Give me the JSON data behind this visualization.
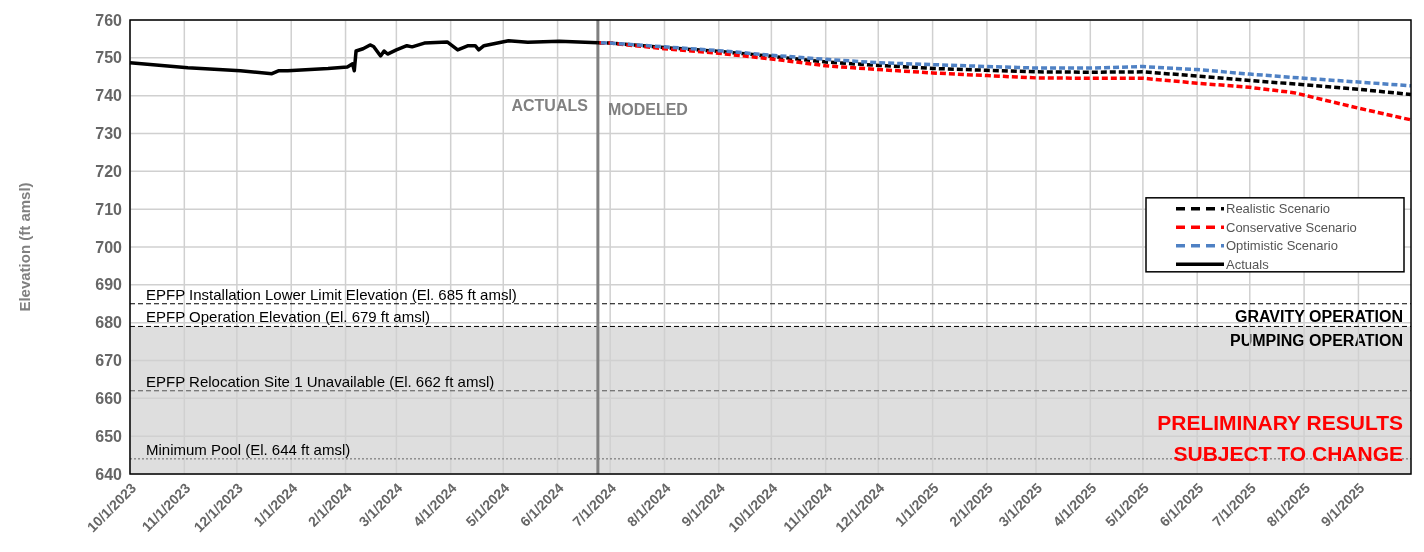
{
  "chart_data": {
    "type": "line",
    "ylabel": "Elevation (ft amsl)",
    "xlim": [
      "2023-10-01",
      "2025-10-01"
    ],
    "xticks": [
      {
        "value": "2023-10-01",
        "label": "10/1/2023"
      },
      {
        "value": "2023-11-01",
        "label": "11/1/2023"
      },
      {
        "value": "2023-12-01",
        "label": "12/1/2023"
      },
      {
        "value": "2024-01-01",
        "label": "1/1/2024"
      },
      {
        "value": "2024-02-01",
        "label": "2/1/2024"
      },
      {
        "value": "2024-03-01",
        "label": "3/1/2024"
      },
      {
        "value": "2024-04-01",
        "label": "4/1/2024"
      },
      {
        "value": "2024-05-01",
        "label": "5/1/2024"
      },
      {
        "value": "2024-06-01",
        "label": "6/1/2024"
      },
      {
        "value": "2024-07-01",
        "label": "7/1/2024"
      },
      {
        "value": "2024-08-01",
        "label": "8/1/2024"
      },
      {
        "value": "2024-09-01",
        "label": "9/1/2024"
      },
      {
        "value": "2024-10-01",
        "label": "10/1/2024"
      },
      {
        "value": "2024-11-01",
        "label": "11/1/2024"
      },
      {
        "value": "2024-12-01",
        "label": "12/1/2024"
      },
      {
        "value": "2025-01-01",
        "label": "1/1/2025"
      },
      {
        "value": "2025-02-01",
        "label": "2/1/2025"
      },
      {
        "value": "2025-03-01",
        "label": "3/1/2025"
      },
      {
        "value": "2025-04-01",
        "label": "4/1/2025"
      },
      {
        "value": "2025-05-01",
        "label": "5/1/2025"
      },
      {
        "value": "2025-06-01",
        "label": "6/1/2025"
      },
      {
        "value": "2025-07-01",
        "label": "7/1/2025"
      },
      {
        "value": "2025-08-01",
        "label": "8/1/2025"
      },
      {
        "value": "2025-09-01",
        "label": "9/1/2025"
      }
    ],
    "ylim": [
      640,
      760
    ],
    "yticks": [
      640,
      650,
      660,
      670,
      680,
      690,
      700,
      710,
      720,
      730,
      740,
      750,
      760
    ],
    "grid": true,
    "legend": "right",
    "series": [
      {
        "name": "Realistic Scenario",
        "color": "#000000",
        "line_style": "dashed",
        "x": [
          "2024-06-24",
          "2024-07-01",
          "2024-08-01",
          "2024-09-01",
          "2024-10-01",
          "2024-11-01",
          "2024-12-01",
          "2025-01-01",
          "2025-02-01",
          "2025-03-01",
          "2025-04-01",
          "2025-05-01",
          "2025-06-01",
          "2025-07-01",
          "2025-08-01",
          "2025-09-01",
          "2025-10-01"
        ],
        "values": [
          754.0,
          753.9,
          752.7,
          751.7,
          750.4,
          748.9,
          748.0,
          747.2,
          746.7,
          746.3,
          746.2,
          746.3,
          745.2,
          744.0,
          742.9,
          741.7,
          740.3
        ]
      },
      {
        "name": "Conservative Scenario",
        "color": "#ff0000",
        "line_style": "dashed",
        "x": [
          "2024-06-24",
          "2024-07-01",
          "2024-08-01",
          "2024-09-01",
          "2024-10-01",
          "2024-11-01",
          "2024-12-01",
          "2025-01-01",
          "2025-02-01",
          "2025-03-01",
          "2025-04-01",
          "2025-05-01",
          "2025-06-01",
          "2025-07-01",
          "2025-07-26",
          "2025-09-01",
          "2025-10-01"
        ],
        "values": [
          754.0,
          753.9,
          752.4,
          751.2,
          749.7,
          747.9,
          746.9,
          746.0,
          745.3,
          744.7,
          744.6,
          744.6,
          743.3,
          742.2,
          740.8,
          736.7,
          733.6
        ]
      },
      {
        "name": "Optimistic Scenario",
        "color": "#4f81c4",
        "line_style": "dashed",
        "x": [
          "2024-06-24",
          "2024-07-01",
          "2024-08-01",
          "2024-09-01",
          "2024-10-01",
          "2024-11-01",
          "2024-12-01",
          "2025-01-01",
          "2025-02-01",
          "2025-03-01",
          "2025-04-01",
          "2025-05-01",
          "2025-06-01",
          "2025-07-01",
          "2025-08-01",
          "2025-09-01",
          "2025-10-01"
        ],
        "values": [
          754.0,
          753.9,
          752.9,
          751.9,
          750.7,
          749.6,
          748.7,
          748.2,
          747.7,
          747.3,
          747.3,
          747.7,
          746.9,
          745.7,
          744.6,
          743.6,
          742.6
        ]
      },
      {
        "name": "Actuals",
        "color": "#000000",
        "line_style": "solid",
        "x": [
          "2023-10-01",
          "2023-11-03",
          "2023-12-03",
          "2023-12-21",
          "2023-12-25",
          "2023-12-30",
          "2024-01-22",
          "2024-02-02",
          "2024-02-05",
          "2024-02-06",
          "2024-02-07",
          "2024-02-11",
          "2024-02-15",
          "2024-02-17",
          "2024-02-21",
          "2024-02-23",
          "2024-02-25",
          "2024-03-01",
          "2024-03-07",
          "2024-03-10",
          "2024-03-17",
          "2024-03-30",
          "2024-04-05",
          "2024-04-11",
          "2024-04-15",
          "2024-04-17",
          "2024-04-20",
          "2024-05-04",
          "2024-05-15",
          "2024-06-02",
          "2024-06-24"
        ],
        "values": [
          748.7,
          747.4,
          746.6,
          745.8,
          746.6,
          746.6,
          747.2,
          747.6,
          748.4,
          746.6,
          751.8,
          752.4,
          753.4,
          753.0,
          750.5,
          751.8,
          751.0,
          752.1,
          753.2,
          752.9,
          753.9,
          754.2,
          752.1,
          753.2,
          753.2,
          752.1,
          753.2,
          754.5,
          754.1,
          754.4,
          754.0
        ]
      }
    ],
    "ref_lines": [
      {
        "axis": "y",
        "value": 685,
        "label": "EPFP Installation Lower Limit Elevation (El. 685 ft amsl)",
        "color": "#000000",
        "line_style": "dashed"
      },
      {
        "axis": "y",
        "value": 679,
        "label": "EPFP Operation Elevation (El. 679 ft amsl)",
        "color": "#000000",
        "line_style": "dashed"
      },
      {
        "axis": "y",
        "value": 662,
        "label": "EPFP Relocation Site 1 Unavailable (El. 662 ft amsl)",
        "color": "#555555",
        "line_style": "dashed"
      },
      {
        "axis": "y",
        "value": 644,
        "label": "Minimum Pool (El. 644 ft amsl)",
        "color": "#666666",
        "line_style": "dotted"
      },
      {
        "axis": "x",
        "value": "2024-06-24",
        "color": "#808080",
        "line_style": "solid"
      }
    ],
    "bands": [
      {
        "axis": "y",
        "from": 640,
        "to": 679,
        "label": "PUMPING OPERATION",
        "color": "#dedede"
      }
    ],
    "annotations": [
      "ACTUALS",
      "MODELED",
      "GRAVITY OPERATION",
      "PRELIMINARY RESULTS SUBJECT TO CHANGE"
    ]
  }
}
